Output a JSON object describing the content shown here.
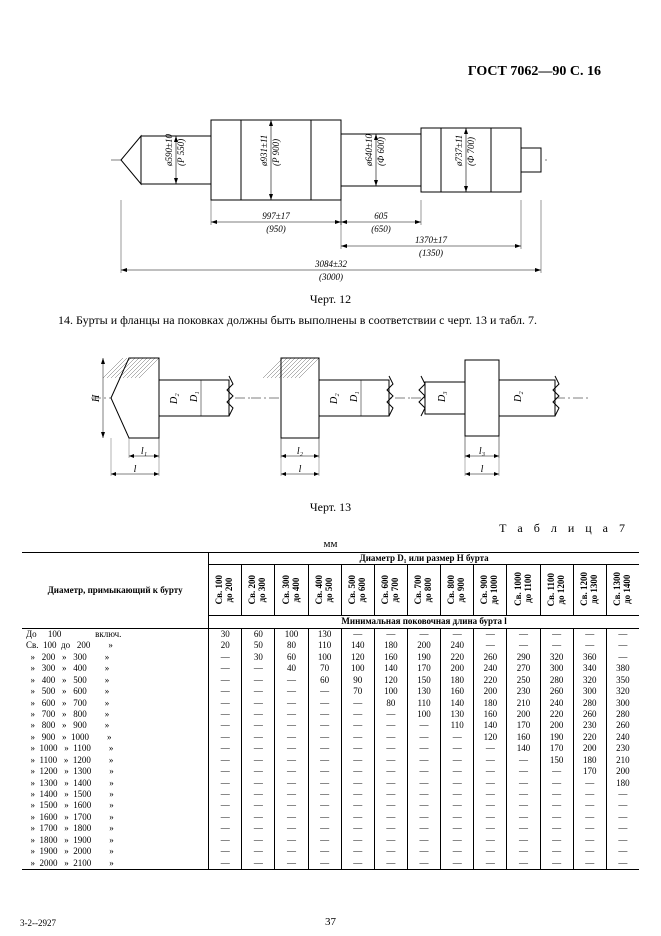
{
  "header": {
    "title": "ГОСТ 7062—90 С. 16"
  },
  "page_number": "37",
  "footer_code": "3-2--2927",
  "fig12": {
    "label": "Черт. 12",
    "dims_diam": [
      {
        "d": "ø590±10",
        "p": "(Р 550)"
      },
      {
        "d": "ø931±11",
        "p": "(P 900)"
      },
      {
        "d": "ø640±10",
        "p": "(Ф 600)"
      },
      {
        "d": "ø737±11",
        "p": "(Ф 700)"
      }
    ],
    "dims_len": [
      {
        "l": "997±17",
        "p": "(950)"
      },
      {
        "l": "605",
        "p": "(650)"
      },
      {
        "l": "1370±17",
        "p": "(1350)"
      },
      {
        "l": "3084±32",
        "p": "(3000)"
      }
    ],
    "stroke": "#000",
    "fill": "#fff"
  },
  "para14": "14. Бурты и фланцы на поковках должны быть выполнены в соответствии с черт. 13 и табл. 7.",
  "fig13": {
    "label": "Черт. 13",
    "syms": {
      "H": "H",
      "D1": "D₁",
      "D2": "D₂",
      "D3": "D₃",
      "l": "l",
      "l1": "l₁",
      "l2": "l₂",
      "l3": "l₃"
    }
  },
  "table7": {
    "caption": "Т а б л и ц а 7",
    "mm": "мм",
    "colhead1": "Диаметр, примыкающий к бурту",
    "colhead2": "Диаметр D₁ или размер H бурта",
    "colhead3": "Минимальная поковочная длина бурта l",
    "cols": [
      {
        "a": "Св. 100",
        "b": "до 200"
      },
      {
        "a": "Св. 200",
        "b": "до 300"
      },
      {
        "a": "Св. 300",
        "b": "до 400"
      },
      {
        "a": "Св. 400",
        "b": "до 500"
      },
      {
        "a": "Св. 500",
        "b": "до 600"
      },
      {
        "a": "Св. 600",
        "b": "до 700"
      },
      {
        "a": "Св. 700",
        "b": "до 800"
      },
      {
        "a": "Св. 800",
        "b": "до 900"
      },
      {
        "a": "Св. 900",
        "b": "до 1000"
      },
      {
        "a": "Св. 1000",
        "b": "до 1100"
      },
      {
        "a": "Св. 1100",
        "b": "до 1200"
      },
      {
        "a": "Св. 1200",
        "b": "до 1300"
      },
      {
        "a": "Св. 1300",
        "b": "до 1400"
      }
    ],
    "rowlabels": [
      "До     100               включ.",
      "Св.  100  до   200        »",
      "  »   200   »   300        »",
      "  »   300   »   400        »",
      "  »   400   »   500        »",
      "  »   500   »   600        »",
      "  »   600   »   700        »",
      "  »   700   »   800        »",
      "  »   800   »   900        »",
      "  »   900   »  1000        »",
      "  »  1000   »  1100        »",
      "  »  1100   »  1200        »",
      "  »  1200   »  1300        »",
      "  »  1300   »  1400        »",
      "  »  1400   »  1500        »",
      "  »  1500   »  1600        »",
      "  »  1600   »  1700        »",
      "  »  1700   »  1800        »",
      "  »  1800   »  1900        »",
      "  »  1900   »  2000        »",
      "  »  2000   »  2100        »"
    ],
    "data": [
      [
        "30",
        "60",
        "100",
        "130",
        "—",
        "—",
        "—",
        "—",
        "—",
        "—",
        "—",
        "—",
        "—"
      ],
      [
        "20",
        "50",
        "80",
        "110",
        "140",
        "180",
        "200",
        "240",
        "—",
        "—",
        "—",
        "—",
        "—"
      ],
      [
        "—",
        "30",
        "60",
        "100",
        "120",
        "160",
        "190",
        "220",
        "260",
        "290",
        "320",
        "360",
        "—"
      ],
      [
        "—",
        "—",
        "40",
        "70",
        "100",
        "140",
        "170",
        "200",
        "240",
        "270",
        "300",
        "340",
        "380"
      ],
      [
        "—",
        "—",
        "—",
        "60",
        "90",
        "120",
        "150",
        "180",
        "220",
        "250",
        "280",
        "320",
        "350"
      ],
      [
        "—",
        "—",
        "—",
        "—",
        "70",
        "100",
        "130",
        "160",
        "200",
        "230",
        "260",
        "300",
        "320"
      ],
      [
        "—",
        "—",
        "—",
        "—",
        "—",
        "80",
        "110",
        "140",
        "180",
        "210",
        "240",
        "280",
        "300"
      ],
      [
        "—",
        "—",
        "—",
        "—",
        "—",
        "—",
        "100",
        "130",
        "160",
        "200",
        "220",
        "260",
        "280"
      ],
      [
        "—",
        "—",
        "—",
        "—",
        "—",
        "—",
        "—",
        "110",
        "140",
        "170",
        "200",
        "230",
        "260"
      ],
      [
        "—",
        "—",
        "—",
        "—",
        "—",
        "—",
        "—",
        "—",
        "120",
        "160",
        "190",
        "220",
        "240"
      ],
      [
        "—",
        "—",
        "—",
        "—",
        "—",
        "—",
        "—",
        "—",
        "—",
        "140",
        "170",
        "200",
        "230"
      ],
      [
        "—",
        "—",
        "—",
        "—",
        "—",
        "—",
        "—",
        "—",
        "—",
        "—",
        "150",
        "180",
        "210"
      ],
      [
        "—",
        "—",
        "—",
        "—",
        "—",
        "—",
        "—",
        "—",
        "—",
        "—",
        "—",
        "170",
        "200"
      ],
      [
        "—",
        "—",
        "—",
        "—",
        "—",
        "—",
        "—",
        "—",
        "—",
        "—",
        "—",
        "—",
        "180"
      ],
      [
        "—",
        "—",
        "—",
        "—",
        "—",
        "—",
        "—",
        "—",
        "—",
        "—",
        "—",
        "—",
        "—"
      ],
      [
        "—",
        "—",
        "—",
        "—",
        "—",
        "—",
        "—",
        "—",
        "—",
        "—",
        "—",
        "—",
        "—"
      ],
      [
        "—",
        "—",
        "—",
        "—",
        "—",
        "—",
        "—",
        "—",
        "—",
        "—",
        "—",
        "—",
        "—"
      ],
      [
        "—",
        "—",
        "—",
        "—",
        "—",
        "—",
        "—",
        "—",
        "—",
        "—",
        "—",
        "—",
        "—"
      ],
      [
        "—",
        "—",
        "—",
        "—",
        "—",
        "—",
        "—",
        "—",
        "—",
        "—",
        "—",
        "—",
        "—"
      ],
      [
        "—",
        "—",
        "—",
        "—",
        "—",
        "—",
        "—",
        "—",
        "—",
        "—",
        "—",
        "—",
        "—"
      ],
      [
        "—",
        "—",
        "—",
        "—",
        "—",
        "—",
        "—",
        "—",
        "—",
        "—",
        "—",
        "—",
        "—"
      ]
    ]
  }
}
